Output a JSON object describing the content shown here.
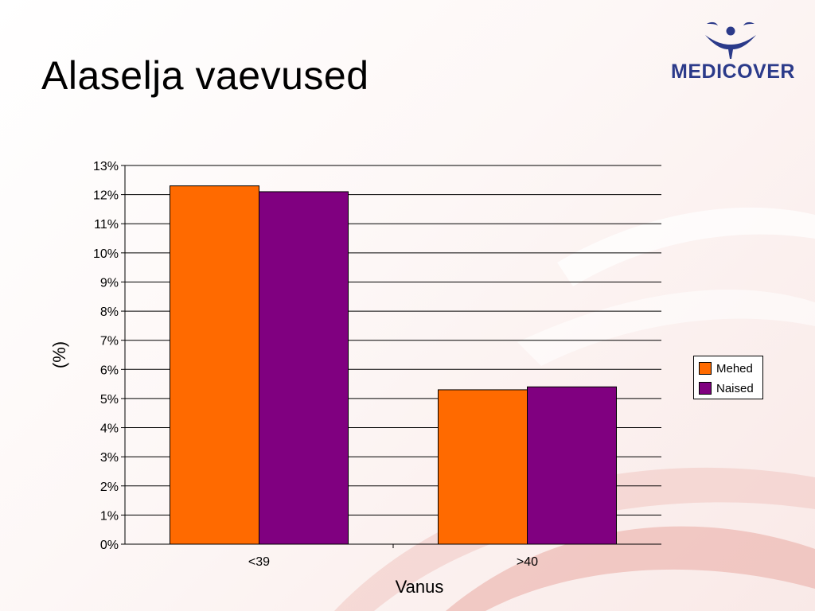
{
  "slide": {
    "title": "Alaselja vaevused",
    "logo_text": "MEDICOVER"
  },
  "colors": {
    "series_1": "#ff6a00",
    "series_2": "#800080",
    "logo": "#2b3a8a"
  },
  "chart_data": {
    "type": "bar",
    "categories": [
      "<39",
      ">40"
    ],
    "series": [
      {
        "name": "Mehed",
        "values": [
          12.3,
          5.3
        ]
      },
      {
        "name": "Naised",
        "values": [
          12.1,
          5.4
        ]
      }
    ],
    "xlabel": "Vanus",
    "ylabel": "(%)",
    "ylim": [
      0,
      13
    ],
    "y_ticks": [
      "0%",
      "1%",
      "2%",
      "3%",
      "4%",
      "5%",
      "6%",
      "7%",
      "8%",
      "9%",
      "10%",
      "11%",
      "12%",
      "13%"
    ],
    "grid": true,
    "legend_position": "right"
  }
}
